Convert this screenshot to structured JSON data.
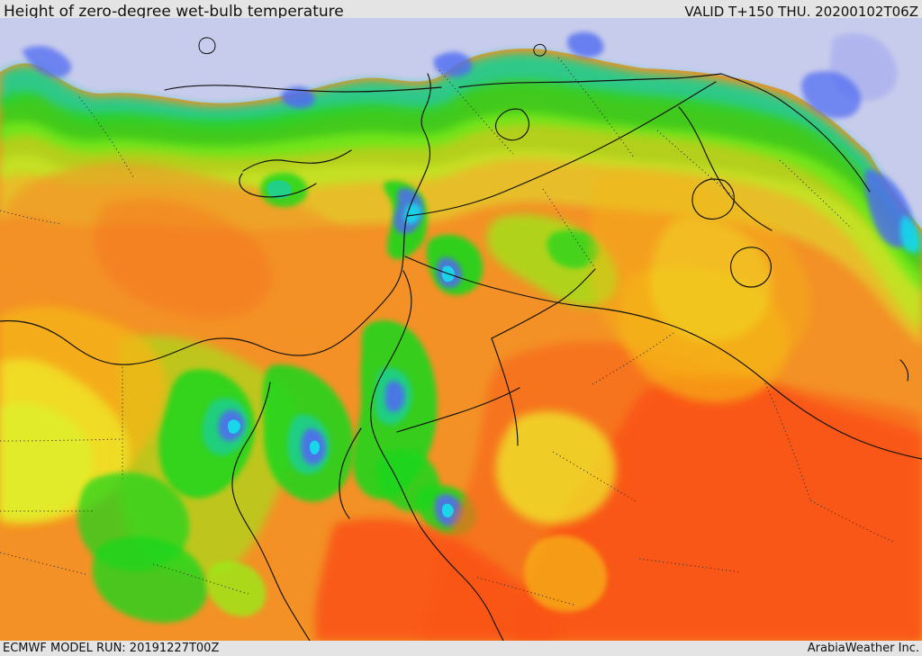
{
  "header": {
    "title": "Height of zero-degree wet-bulb temperature",
    "valid_time": "VALID T+150 THU. 20200102T06Z"
  },
  "footer": {
    "model_run": "ECMWF MODEL RUN: 20191227T00Z",
    "credit": "ArabiaWeather Inc."
  },
  "colors": {
    "sea_ice_pale": "#c8ccec",
    "purple_low": "#a7b0f2",
    "blue": "#4f6cf2",
    "cyan": "#19d7ea",
    "teal": "#1fcf93",
    "green": "#1fd61f",
    "light_green": "#8ff612",
    "yellow_green": "#d9f52f",
    "yellow": "#efef2b",
    "orange_light": "#f6b618",
    "orange": "#f39126",
    "orange_dark": "#f86b1c",
    "red_orange": "#fa5216",
    "border": "#111111"
  }
}
